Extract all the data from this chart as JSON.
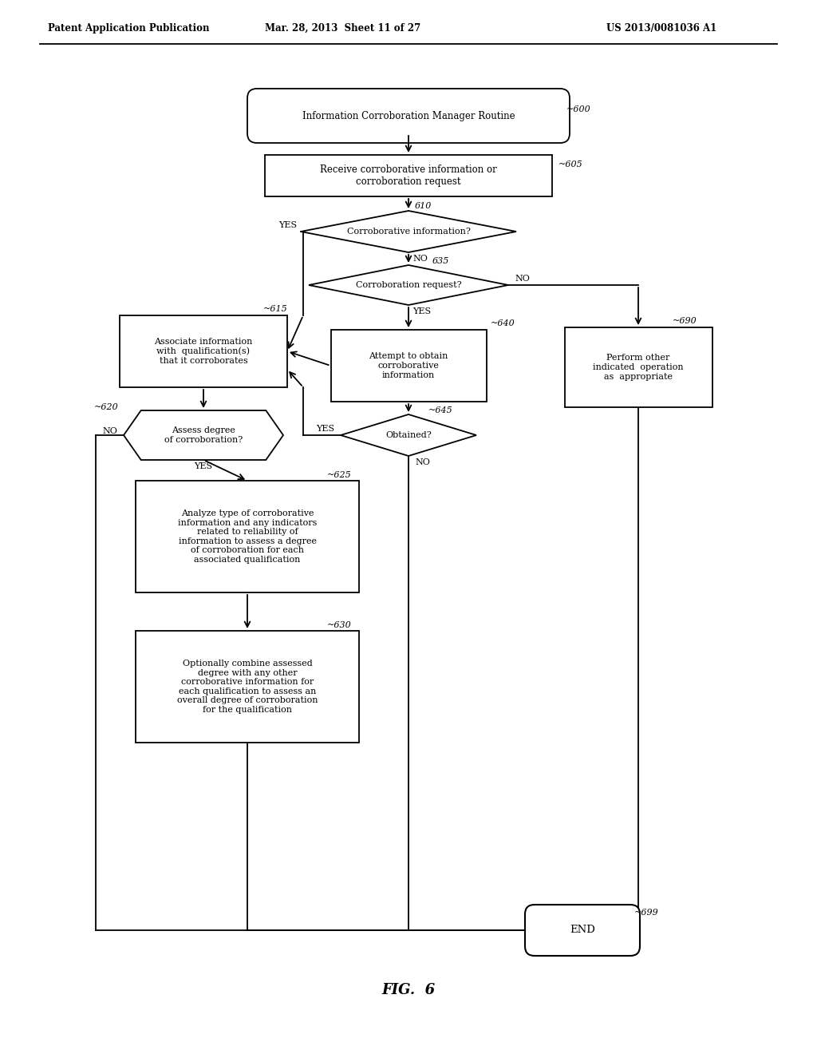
{
  "header_left": "Patent Application Publication",
  "header_mid": "Mar. 28, 2013  Sheet 11 of 27",
  "header_right": "US 2013/0081036 A1",
  "fig_label": "FIG.  6",
  "bg_color": "#ffffff",
  "lw": 1.3
}
